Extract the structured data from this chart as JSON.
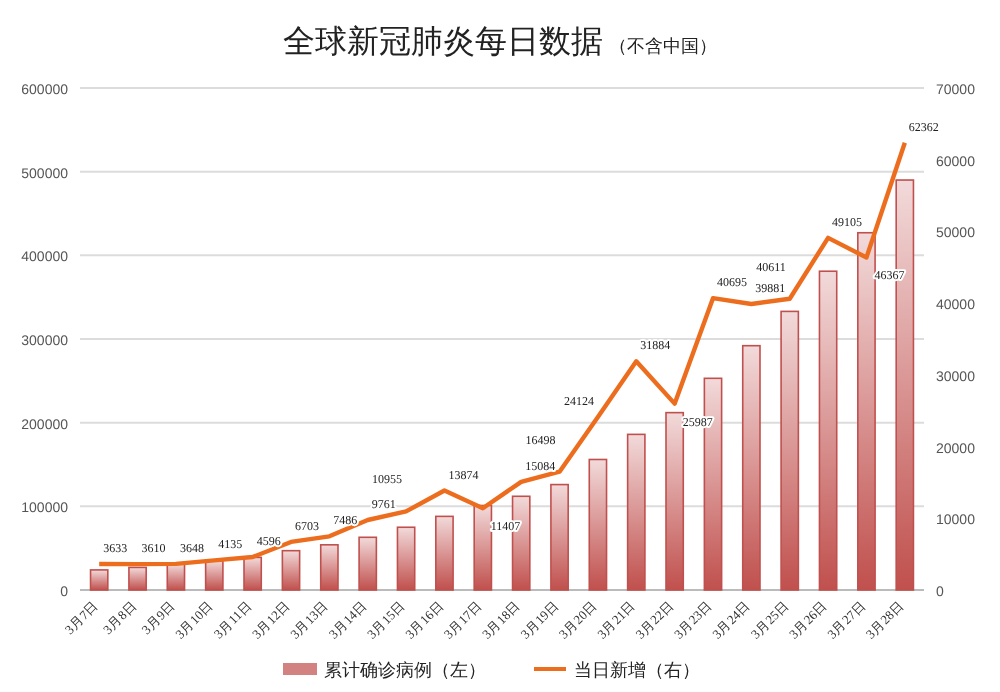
{
  "chart_data": {
    "type": "bar",
    "title": "全球新冠肺炎每日数据",
    "subtitle": "（不含中国）",
    "categories": [
      "3月7日",
      "3月8日",
      "3月9日",
      "3月10日",
      "3月11日",
      "3月12日",
      "3月13日",
      "3月14日",
      "3月15日",
      "3月16日",
      "3月17日",
      "3月18日",
      "3月19日",
      "3月20日",
      "3月21日",
      "3月22日",
      "3月23日",
      "3月24日",
      "3月25日",
      "3月26日",
      "3月27日",
      "3月28日"
    ],
    "series": [
      {
        "name": "累计确诊病例（左）",
        "color": "#c0504d",
        "values": [
          24000,
          27000,
          31000,
          35000,
          39000,
          47000,
          54000,
          63000,
          75000,
          88000,
          101000,
          112000,
          126000,
          156000,
          186000,
          212000,
          253000,
          292000,
          333000,
          381000,
          427000,
          490000
        ]
      },
      {
        "name": "当日新增（右）",
        "type": "line",
        "axis": "y2",
        "color": "#ed6d1f",
        "values": [
          3633,
          3610,
          3648,
          4135,
          4596,
          6703,
          7486,
          9761,
          10955,
          13874,
          11407,
          15084,
          16498,
          24124,
          31884,
          25987,
          40695,
          39881,
          40611,
          49105,
          46367,
          62362
        ],
        "value_labels": [
          "3633",
          "3610",
          "3648",
          "4135",
          "4596",
          "6703",
          "7486",
          "9761",
          "10955",
          "13874",
          "11407",
          "15084",
          "16498",
          "24124",
          "31884",
          "25987",
          "40695",
          "39881",
          "40611",
          "49105",
          "46367",
          "62362"
        ]
      }
    ],
    "ylim": [
      0,
      600000
    ],
    "yticks": [
      0,
      100000,
      200000,
      300000,
      400000,
      500000,
      600000
    ],
    "y2lim": [
      0,
      70000
    ],
    "y2ticks": [
      0,
      10000,
      20000,
      30000,
      40000,
      50000,
      60000,
      70000
    ],
    "grid": "y",
    "legend": "bottom",
    "marker": "none",
    "line_style": "solid"
  }
}
